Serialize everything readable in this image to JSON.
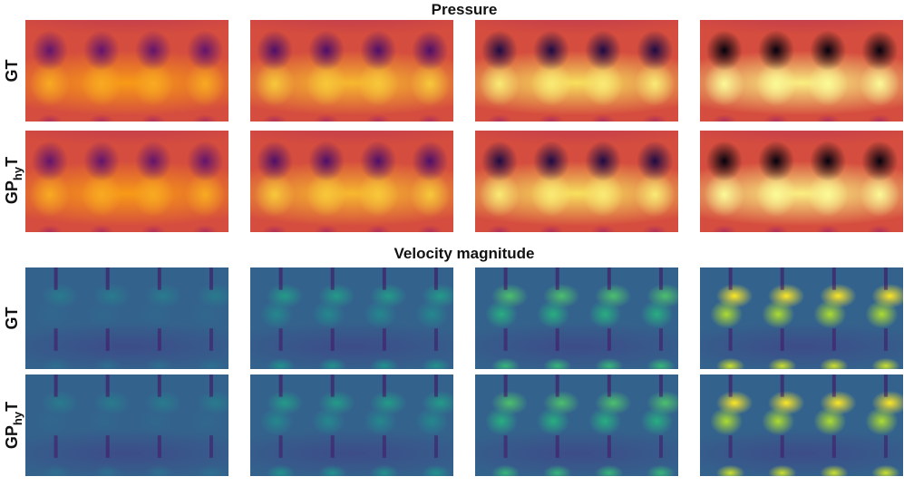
{
  "chart_data": {
    "type": "heatmap",
    "panels": [
      {
        "title": "Pressure",
        "colormap": "inferno",
        "rows": [
          {
            "label_main": "GT",
            "label_sub": ""
          },
          {
            "label_main": "GP",
            "label_sub": "hy",
            "label_end": "T"
          }
        ],
        "columns": 4,
        "field": {
          "blobs_per_panel": 4,
          "min_level_per_column": [
            0.34,
            0.28,
            0.14,
            0.02
          ],
          "max_level_per_column": [
            0.86,
            0.9,
            0.96,
            0.99
          ],
          "base_level": 0.68
        }
      },
      {
        "title": "Velocity magnitude",
        "colormap": "viridis",
        "rows": [
          {
            "label_main": "GT",
            "label_sub": ""
          },
          {
            "label_main": "GP",
            "label_sub": "hy",
            "label_end": "T"
          }
        ],
        "columns": 4,
        "field": {
          "blobs_per_panel": 4,
          "peak_level_per_column": [
            0.48,
            0.6,
            0.78,
            1.0
          ],
          "base_level": 0.38
        }
      }
    ]
  },
  "colors": {
    "background": "#ffffff",
    "text": "#111111"
  }
}
